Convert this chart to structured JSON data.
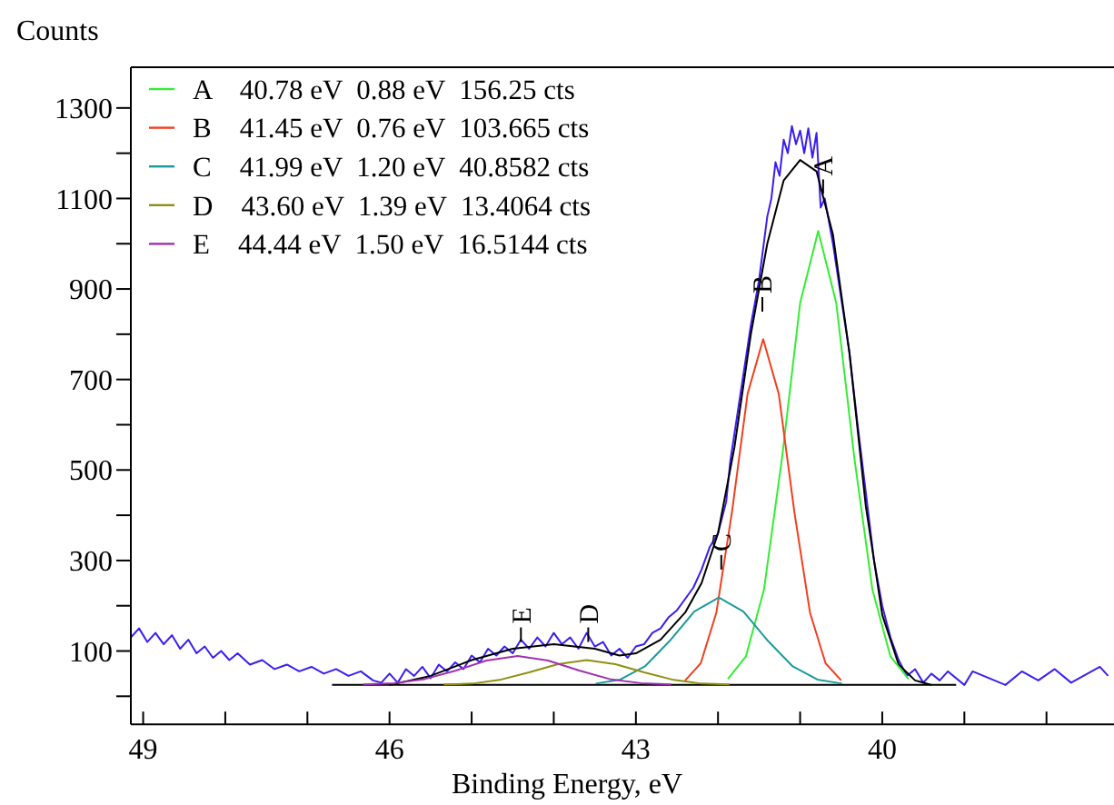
{
  "chart_data": {
    "type": "line",
    "xlabel": "Binding Energy, eV",
    "ylabel": "Counts",
    "xlim": [
      49.15,
      37.2
    ],
    "ylim": [
      -62,
      1390
    ],
    "xticks": [
      49,
      {
        "value": 48,
        "label": null
      },
      {
        "value": 47,
        "label": null
      },
      46,
      {
        "value": 45,
        "label": null
      },
      {
        "value": 44,
        "label": null
      },
      43,
      {
        "value": 42,
        "label": null
      },
      {
        "value": 41,
        "label": null
      },
      40,
      {
        "value": 39,
        "label": null
      },
      {
        "value": 38,
        "label": null
      }
    ],
    "yticks": [
      {
        "value": 0,
        "label": null
      },
      100,
      {
        "value": 200,
        "label": null
      },
      300,
      {
        "value": 400,
        "label": null
      },
      500,
      {
        "value": 600,
        "label": null
      },
      700,
      {
        "value": 800,
        "label": null
      },
      900,
      {
        "value": 1000,
        "label": null
      },
      1100,
      {
        "value": 1200,
        "label": null
      },
      1300
    ],
    "legend": "top left",
    "grid": false,
    "marker": "none",
    "line_style": "solid",
    "series": [
      {
        "color": "#3a1ef0",
        "x": [
          49.15,
          49.05,
          48.95,
          48.85,
          48.75,
          48.65,
          48.55,
          48.45,
          48.35,
          48.25,
          48.15,
          48.05,
          47.95,
          47.85,
          47.7,
          47.55,
          47.4,
          47.25,
          47.1,
          46.95,
          46.8,
          46.65,
          46.5,
          46.35,
          46.2,
          46.1,
          46.0,
          45.9,
          45.8,
          45.7,
          45.6,
          45.5,
          45.4,
          45.3,
          45.2,
          45.1,
          45.0,
          44.9,
          44.8,
          44.7,
          44.6,
          44.5,
          44.4,
          44.3,
          44.2,
          44.1,
          44.0,
          43.9,
          43.8,
          43.7,
          43.6,
          43.5,
          43.4,
          43.3,
          43.2,
          43.1,
          43.0,
          42.9,
          42.8,
          42.7,
          42.6,
          42.5,
          42.4,
          42.3,
          42.2,
          42.1,
          42.0,
          41.9,
          41.85,
          41.8,
          41.7,
          41.6,
          41.5,
          41.4,
          41.35,
          41.3,
          41.25,
          41.2,
          41.15,
          41.1,
          41.05,
          41.0,
          40.95,
          40.9,
          40.85,
          40.8,
          40.75,
          40.7,
          40.6,
          40.5,
          40.4,
          40.3,
          40.2,
          40.1,
          40.0,
          39.9,
          39.8,
          39.7,
          39.6,
          39.5,
          39.4,
          39.3,
          39.2,
          39.0,
          38.9,
          38.7,
          38.5,
          38.3,
          38.1,
          37.9,
          37.7,
          37.5,
          37.35,
          37.25
        ],
        "values": [
          130,
          150,
          120,
          140,
          115,
          135,
          105,
          125,
          95,
          110,
          85,
          100,
          80,
          95,
          70,
          80,
          60,
          70,
          55,
          65,
          50,
          60,
          45,
          55,
          35,
          30,
          50,
          30,
          60,
          45,
          65,
          40,
          70,
          55,
          75,
          60,
          90,
          75,
          105,
          90,
          110,
          95,
          125,
          105,
          130,
          110,
          140,
          115,
          130,
          105,
          140,
          110,
          120,
          90,
          105,
          85,
          110,
          115,
          140,
          150,
          175,
          190,
          215,
          240,
          280,
          330,
          360,
          430,
          520,
          580,
          700,
          820,
          920,
          1060,
          1100,
          1180,
          1150,
          1230,
          1200,
          1260,
          1220,
          1250,
          1200,
          1255,
          1190,
          1245,
          1080,
          1100,
          1000,
          880,
          760,
          600,
          450,
          300,
          200,
          130,
          80,
          45,
          60,
          30,
          50,
          35,
          55,
          25,
          55,
          40,
          25,
          55,
          35,
          60,
          30,
          50,
          65,
          45
        ]
      },
      {
        "color": "#000000",
        "x": [
          46.0,
          45.5,
          45.0,
          44.5,
          44.0,
          43.5,
          43.2,
          43.0,
          42.7,
          42.4,
          42.2,
          42.0,
          41.8,
          41.6,
          41.4,
          41.2,
          41.0,
          40.8,
          40.6,
          40.4,
          40.2,
          40.0,
          39.8,
          39.6,
          39.4
        ],
        "values": [
          25,
          45,
          80,
          105,
          115,
          105,
          90,
          95,
          125,
          185,
          250,
          360,
          550,
          800,
          1000,
          1140,
          1185,
          1160,
          1020,
          760,
          420,
          180,
          70,
          35,
          25
        ]
      },
      {
        "name": "A    40.78 eV  0.88 eV  156.25 cts",
        "color": "#33ee33",
        "x": [
          39.68,
          39.9,
          40.12,
          40.34,
          40.56,
          40.78,
          41.0,
          41.22,
          41.44,
          41.66,
          41.88
        ],
        "values": [
          38,
          88,
          236,
          527,
          869,
          1028,
          869,
          527,
          236,
          88,
          38
        ]
      },
      {
        "name": "B    41.45 eV  0.76 eV  103.665 cts",
        "color": "#f04020",
        "x": [
          40.5,
          40.69,
          40.88,
          41.07,
          41.26,
          41.45,
          41.64,
          41.83,
          42.02,
          42.21,
          42.4
        ],
        "values": [
          35,
          73,
          185,
          407,
          668,
          789,
          668,
          407,
          185,
          73,
          35
        ]
      },
      {
        "name": "C    41.99 eV  1.20 eV  40.8582 cts",
        "color": "#1a9a9a",
        "x": [
          40.49,
          40.79,
          41.09,
          41.39,
          41.69,
          41.99,
          42.29,
          42.59,
          42.89,
          43.19,
          43.49
        ],
        "values": [
          28,
          37,
          66,
          122,
          187,
          218,
          187,
          122,
          66,
          37,
          28
        ]
      },
      {
        "name": "D    43.60 eV  1.39 eV  13.4064 cts",
        "color": "#8f8f10",
        "x": [
          41.86,
          42.21,
          42.56,
          42.9,
          43.25,
          43.6,
          43.95,
          44.3,
          44.64,
          44.99,
          45.34
        ],
        "values": [
          26,
          28,
          37,
          53,
          71,
          80,
          71,
          53,
          37,
          28,
          26
        ]
      },
      {
        "name": "E    44.44 eV  1.50 eV  16.5144 cts",
        "color": "#a030b0",
        "x": [
          42.57,
          42.94,
          43.32,
          43.69,
          44.07,
          44.44,
          44.82,
          45.19,
          45.57,
          45.94,
          46.32
        ],
        "values": [
          26,
          29,
          38,
          57,
          79,
          89,
          79,
          57,
          38,
          29,
          26
        ]
      }
    ],
    "ref_lines": [
      {
        "axis": "y",
        "value": 25,
        "color": "#000000",
        "line_style": "solid"
      }
    ],
    "annotations": [
      {
        "text": "A",
        "x": 40.72,
        "y": 1110
      },
      {
        "text": "B",
        "x": 41.46,
        "y": 850
      },
      {
        "text": "C",
        "x": 41.96,
        "y": 280
      },
      {
        "text": "D",
        "x": 43.58,
        "y": 120
      },
      {
        "text": "E",
        "x": 44.4,
        "y": 120
      }
    ]
  }
}
